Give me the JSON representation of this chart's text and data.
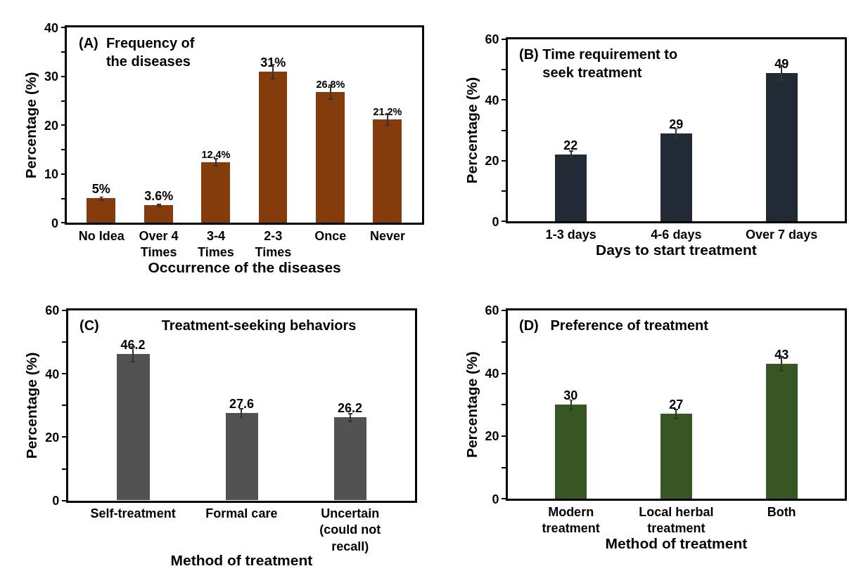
{
  "chart_data": [
    {
      "type": "bar",
      "title": "(A)  Frequency of\n       the diseases",
      "xlabel": "Occurrence of the diseases",
      "ylabel": "Percentage (%)",
      "categories": [
        "No Idea",
        "Over 4\nTimes",
        "3-4\nTimes",
        "2-3\nTimes",
        "Once",
        "Never"
      ],
      "values": [
        5,
        3.6,
        12.4,
        31,
        26.8,
        21.2
      ],
      "errors": [
        0.3,
        0.2,
        0.7,
        1.5,
        1.4,
        1.1
      ],
      "color": "#843c0c",
      "value_labels": [
        "5%",
        "3.6%",
        "12.4%",
        "31%",
        "26.8%",
        "21.2%"
      ],
      "ylim": [
        0,
        40
      ],
      "yticks": [
        0,
        {
          "value": 5,
          "label": null
        },
        10,
        {
          "value": 15,
          "label": null
        },
        20,
        {
          "value": 25,
          "label": null
        },
        30,
        {
          "value": 35,
          "label": null
        },
        40
      ]
    },
    {
      "type": "bar",
      "title": "(B) Time requirement to\n      seek treatment",
      "xlabel": "Days to start treatment",
      "ylabel": "Percentage (%)",
      "categories": [
        "1-3 days",
        "4-6 days",
        "Over 7 days"
      ],
      "values": [
        22,
        29,
        49
      ],
      "errors": [
        1.2,
        1.5,
        2.5
      ],
      "color": "#222a35",
      "data_labels": true,
      "ylim": [
        0,
        60
      ],
      "yticks": [
        0,
        {
          "value": 10,
          "label": null
        },
        20,
        {
          "value": 30,
          "label": null
        },
        40,
        {
          "value": 50,
          "label": null
        },
        60
      ]
    },
    {
      "type": "bar",
      "title": "(C)                Treatment-seeking behaviors",
      "xlabel": "Method of treatment",
      "ylabel": "Percentage (%)",
      "categories": [
        "Self-treatment",
        "Formal care",
        "Uncertain\n(could not\nrecall)"
      ],
      "values": [
        46.2,
        27.6,
        26.2
      ],
      "errors": [
        2.3,
        1.4,
        1.3
      ],
      "color": "#525252",
      "data_labels": true,
      "ylim": [
        0,
        60
      ],
      "yticks": [
        0,
        {
          "value": 10,
          "label": null
        },
        20,
        {
          "value": 30,
          "label": null
        },
        40,
        {
          "value": 50,
          "label": null
        },
        60
      ]
    },
    {
      "type": "bar",
      "title": "(D)   Preference of treatment",
      "xlabel": "Method of treatment",
      "ylabel": "Percentage (%)",
      "categories": [
        "Modern\ntreatment",
        "Local herbal\ntreatment",
        "Both"
      ],
      "values": [
        30,
        27,
        43
      ],
      "errors": [
        1.5,
        1.4,
        2.2
      ],
      "color": "#375623",
      "data_labels": true,
      "ylim": [
        0,
        60
      ],
      "yticks": [
        0,
        {
          "value": 10,
          "label": null
        },
        20,
        {
          "value": 30,
          "label": null
        },
        40,
        {
          "value": 50,
          "label": null
        },
        60
      ]
    }
  ]
}
